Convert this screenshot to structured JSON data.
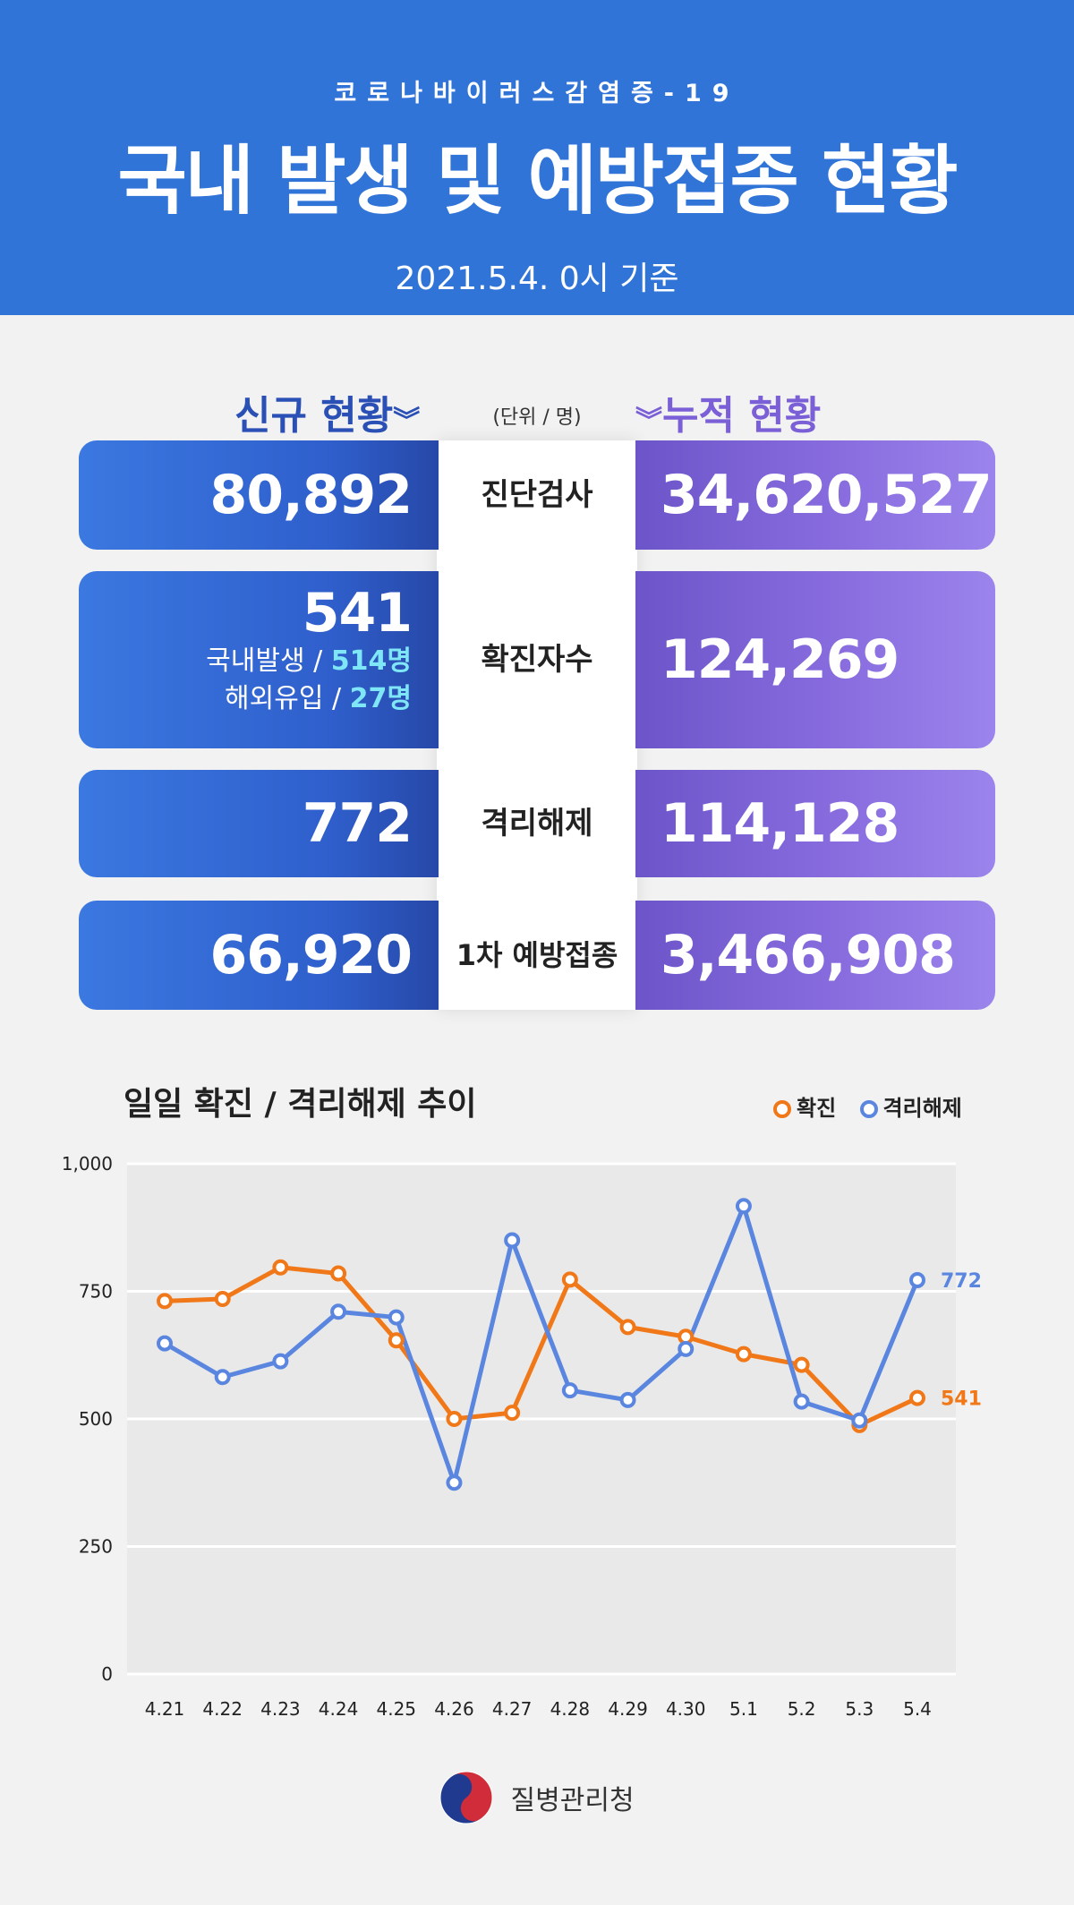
{
  "header": {
    "subtitle": "코로나바이러스감염증-19",
    "title": "국내 발생 및 예방접종 현황",
    "date": "2021.5.4. 0시 기준"
  },
  "sections": {
    "new_label": "신규 현황",
    "cumulative_label": "누적 현황",
    "unit": "(단위 / 명)"
  },
  "stats": [
    {
      "label": "진단검사",
      "new": "80,892",
      "cumulative": "34,620,527"
    },
    {
      "label": "확진자수",
      "new": "541",
      "cumulative": "124,269",
      "breakdown": {
        "domestic_label": "국내발생 /",
        "domestic_value": "514명",
        "overseas_label": "해외유입 /",
        "overseas_value": "27명"
      }
    },
    {
      "label": "격리해제",
      "new": "772",
      "cumulative": "114,128"
    },
    {
      "label": "1차 예방접종",
      "new": "66,920",
      "cumulative": "3,466,908"
    }
  ],
  "colors": {
    "confirmed": "#f07818",
    "released": "#5a86e0"
  },
  "footer": {
    "org": "질병관리청"
  },
  "chart_data": {
    "type": "line",
    "title": "일일 확진 / 격리해제 추이",
    "categories": [
      "4.21",
      "4.22",
      "4.23",
      "4.24",
      "4.25",
      "4.26",
      "4.27",
      "4.28",
      "4.29",
      "4.30",
      "5.1",
      "5.2",
      "5.3",
      "5.4"
    ],
    "series": [
      {
        "name": "확진",
        "values": [
          731,
          735,
          797,
          785,
          654,
          500,
          512,
          773,
          680,
          661,
          627,
          606,
          488,
          541
        ],
        "end_label": "541"
      },
      {
        "name": "격리해제",
        "values": [
          648,
          582,
          613,
          710,
          699,
          375,
          850,
          556,
          537,
          637,
          917,
          534,
          497,
          772
        ],
        "end_label": "772"
      }
    ],
    "ylim": [
      0,
      1000
    ],
    "yticks": [
      "1,000",
      "750",
      "500",
      "250",
      "0"
    ],
    "ytick_values": [
      1000,
      750,
      500,
      250,
      0
    ],
    "grid": true,
    "legend": "top-right"
  }
}
